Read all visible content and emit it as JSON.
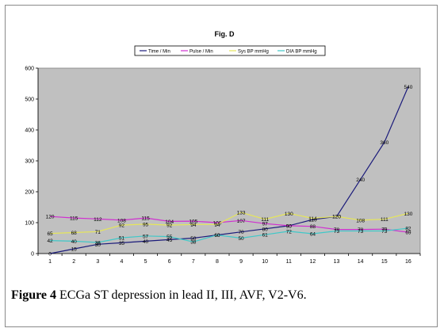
{
  "chart_data": {
    "type": "line",
    "title": "Fig. D",
    "categories": [
      "1",
      "2",
      "3",
      "4",
      "5",
      "6",
      "7",
      "8",
      "9",
      "10",
      "11",
      "12",
      "13",
      "14",
      "15",
      "16"
    ],
    "ylim": [
      0,
      600
    ],
    "yticks": [
      "0",
      "100",
      "200",
      "300",
      "400",
      "500",
      "600"
    ],
    "grid": false,
    "legend": "top",
    "plot_background": "#c0c0c0",
    "series": [
      {
        "name": "Time / Min",
        "color": "#1a1a7a",
        "values": [
          0,
          15,
          30,
          35,
          40,
          45,
          50,
          60,
          70,
          80,
          90,
          110,
          120,
          240,
          360,
          540
        ],
        "labels": [
          "0",
          "15",
          "30",
          "35",
          "40",
          "45",
          "50",
          "60",
          "70",
          "80",
          "90",
          "110",
          "120",
          "240",
          "360",
          "540"
        ]
      },
      {
        "name": "Pulse / Min",
        "color": "#d030d0",
        "values": [
          120,
          115,
          112,
          108,
          115,
          104,
          105,
          100,
          107,
          97,
          90,
          88,
          78,
          78,
          79,
          69
        ],
        "labels": [
          "120",
          "115",
          "112",
          "108",
          "115",
          "104",
          "105",
          "100",
          "107",
          "97",
          "90",
          "88",
          "78",
          "78",
          "79",
          "69"
        ]
      },
      {
        "name": "Sys BP mmHg",
        "color": "#e6e65a",
        "values": [
          65,
          68,
          71,
          92,
          95,
          92,
          94,
          94,
          133,
          111,
          130,
          114,
          120,
          108,
          111,
          130
        ],
        "labels": [
          "65",
          "68",
          "71",
          "92",
          "95",
          "92",
          "94",
          "94",
          "133",
          "111",
          "130",
          "114",
          "120",
          "108",
          "111",
          "130"
        ]
      },
      {
        "name": "DIA BP mmHg",
        "color": "#40c8c8",
        "values": [
          42,
          40,
          36,
          51,
          57,
          55,
          38,
          60,
          50,
          61,
          72,
          64,
          73,
          73,
          73,
          82
        ],
        "labels": [
          "42",
          "40",
          "36",
          "51",
          "57",
          "55",
          "38",
          "60",
          "50",
          "61",
          "72",
          "64",
          "73",
          "73",
          "73",
          "82"
        ]
      }
    ]
  },
  "caption": {
    "prefix": "Figure 4",
    "text": " ECGa ST depression in lead II, III, AVF, V2-V6."
  }
}
